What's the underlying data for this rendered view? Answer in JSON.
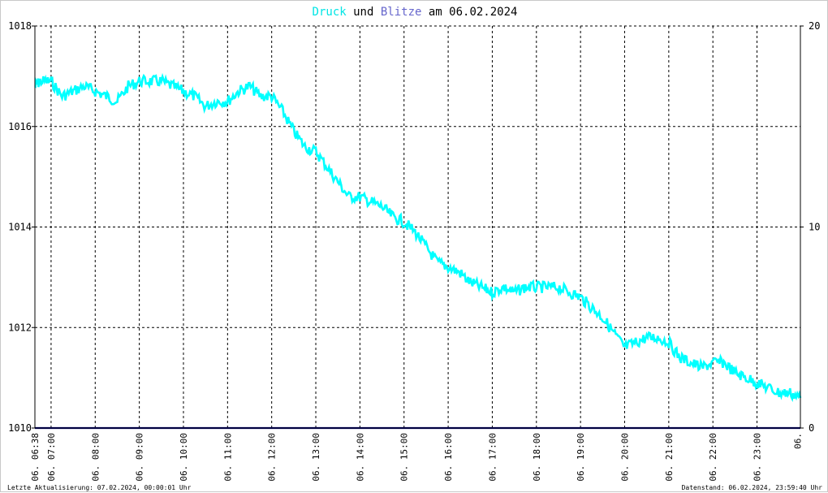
{
  "title": {
    "part1": "Druck",
    "part2": " und ",
    "part3": "Blitze",
    "part4": " am 06.02.2024"
  },
  "colors": {
    "pressure": "#00ffff",
    "lightning": "#3333aa",
    "axis": "#000000",
    "grid": "#000000",
    "baseline": "#000080"
  },
  "footer": {
    "left": "Letzte Aktualisierung: 07.02.2024, 00:00:01 Uhr",
    "right": "Datenstand: 06.02.2024, 23:59:40 Uhr"
  },
  "chart_data": {
    "type": "line",
    "title": "Druck und Blitze am 06.02.2024",
    "x_start": "06. 06:38",
    "x_end": "06. 23:59",
    "x_tick_labels": [
      "06. 06:38",
      "06. 07:00",
      "06. 08:00",
      "06. 09:00",
      "06. 10:00",
      "06. 11:00",
      "06. 12:00",
      "06. 13:00",
      "06. 14:00",
      "06. 15:00",
      "06. 16:00",
      "06. 17:00",
      "06. 18:00",
      "06. 19:00",
      "06. 20:00",
      "06. 21:00",
      "06. 22:00",
      "06. 23:00",
      "06."
    ],
    "y_left": {
      "label": "",
      "ylim": [
        1010,
        1018
      ],
      "ticks": [
        1010,
        1012,
        1014,
        1016,
        1018
      ]
    },
    "y_right": {
      "label": "",
      "ylim": [
        0,
        20
      ],
      "ticks": [
        0,
        10,
        20
      ]
    },
    "grid": true,
    "series": [
      {
        "name": "Druck",
        "axis": "left",
        "color": "#00ffff",
        "x": [
          "06:38",
          "06:45",
          "07:00",
          "07:15",
          "07:30",
          "07:45",
          "08:00",
          "08:15",
          "08:30",
          "08:45",
          "09:00",
          "09:15",
          "09:30",
          "09:45",
          "10:00",
          "10:15",
          "10:30",
          "10:45",
          "11:00",
          "11:15",
          "11:30",
          "11:45",
          "12:00",
          "12:15",
          "12:30",
          "12:45",
          "13:00",
          "13:15",
          "13:30",
          "13:45",
          "14:00",
          "14:15",
          "14:30",
          "14:45",
          "15:00",
          "15:15",
          "15:30",
          "15:45",
          "16:00",
          "16:15",
          "16:30",
          "16:45",
          "17:00",
          "17:15",
          "17:30",
          "17:45",
          "18:00",
          "18:15",
          "18:30",
          "18:45",
          "19:00",
          "19:15",
          "19:30",
          "19:45",
          "20:00",
          "20:15",
          "20:30",
          "20:45",
          "21:00",
          "21:15",
          "21:30",
          "21:45",
          "22:00",
          "22:15",
          "22:30",
          "22:45",
          "23:00",
          "23:15",
          "23:30",
          "23:45",
          "23:59"
        ],
        "values": [
          1016.8,
          1016.9,
          1016.9,
          1016.6,
          1016.7,
          1016.8,
          1016.7,
          1016.6,
          1016.5,
          1016.8,
          1016.9,
          1016.9,
          1016.9,
          1016.8,
          1016.7,
          1016.6,
          1016.4,
          1016.5,
          1016.5,
          1016.7,
          1016.8,
          1016.6,
          1016.6,
          1016.3,
          1015.9,
          1015.6,
          1015.5,
          1015.2,
          1014.9,
          1014.6,
          1014.6,
          1014.5,
          1014.4,
          1014.2,
          1014.1,
          1013.9,
          1013.6,
          1013.3,
          1013.2,
          1013.1,
          1012.9,
          1012.8,
          1012.7,
          1012.8,
          1012.7,
          1012.8,
          1012.8,
          1012.8,
          1012.8,
          1012.7,
          1012.6,
          1012.4,
          1012.2,
          1011.9,
          1011.6,
          1011.7,
          1011.8,
          1011.8,
          1011.7,
          1011.4,
          1011.3,
          1011.2,
          1011.3,
          1011.3,
          1011.1,
          1011.0,
          1010.9,
          1010.8,
          1010.7,
          1010.7,
          1010.6
        ]
      },
      {
        "name": "Blitze",
        "axis": "right",
        "color": "#000080",
        "x": [
          "06:38",
          "23:59"
        ],
        "values": [
          0,
          0
        ]
      }
    ]
  }
}
